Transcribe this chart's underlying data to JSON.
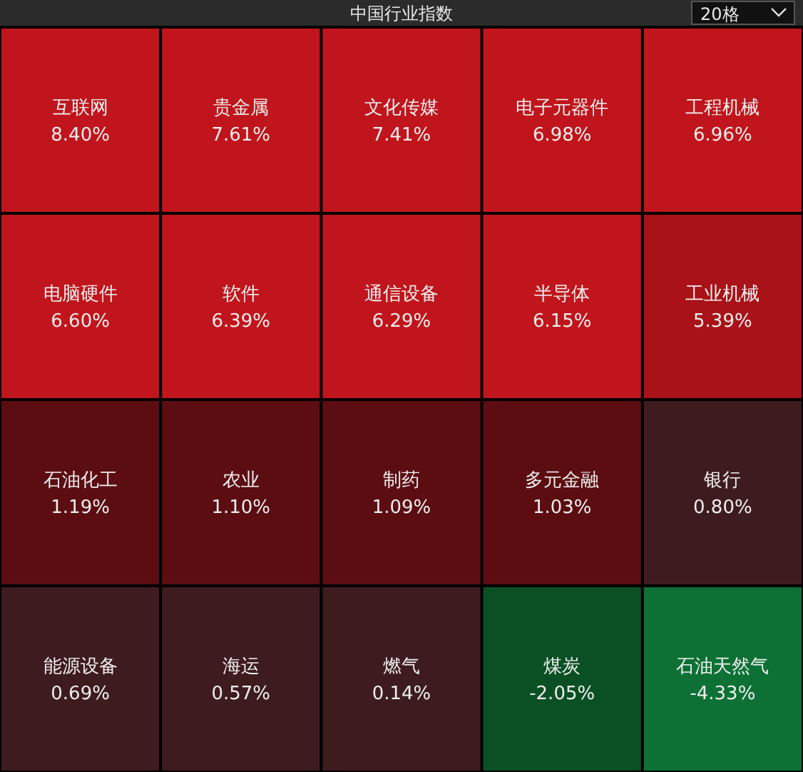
{
  "chart_data": {
    "type": "other",
    "title": "中国行业指数",
    "annotations": [
      "20格"
    ],
    "categories": [
      "互联网",
      "贵金属",
      "文化传媒",
      "电子元器件",
      "工程机械",
      "电脑硬件",
      "软件",
      "通信设备",
      "半导体",
      "工业机械",
      "石油化工",
      "农业",
      "制药",
      "多元金融",
      "银行",
      "能源设备",
      "海运",
      "燃气",
      "煤炭",
      "石油天然气"
    ],
    "values": [
      8.4,
      7.61,
      7.41,
      6.98,
      6.96,
      6.6,
      6.39,
      6.29,
      6.15,
      5.39,
      1.19,
      1.1,
      1.09,
      1.03,
      0.8,
      0.69,
      0.57,
      0.14,
      -2.05,
      -4.33
    ],
    "value_labels": [
      "8.40%",
      "7.61%",
      "7.41%",
      "6.98%",
      "6.96%",
      "6.60%",
      "6.39%",
      "6.29%",
      "6.15%",
      "5.39%",
      "1.19%",
      "1.10%",
      "1.09%",
      "1.03%",
      "0.80%",
      "0.69%",
      "0.57%",
      "0.14%",
      "-2.05%",
      "-4.33%"
    ],
    "colors": [
      "#c0151c",
      "#c0151c",
      "#c0151c",
      "#c0151c",
      "#c0151c",
      "#c0151c",
      "#c0151c",
      "#c0151c",
      "#c0151c",
      "#a81218",
      "#5c0d12",
      "#5c0d12",
      "#5c0d12",
      "#5c0d12",
      "#3e1b1f",
      "#3e1b1f",
      "#3e1b1f",
      "#3e1b1f",
      "#0b5024",
      "#0d7034"
    ]
  }
}
